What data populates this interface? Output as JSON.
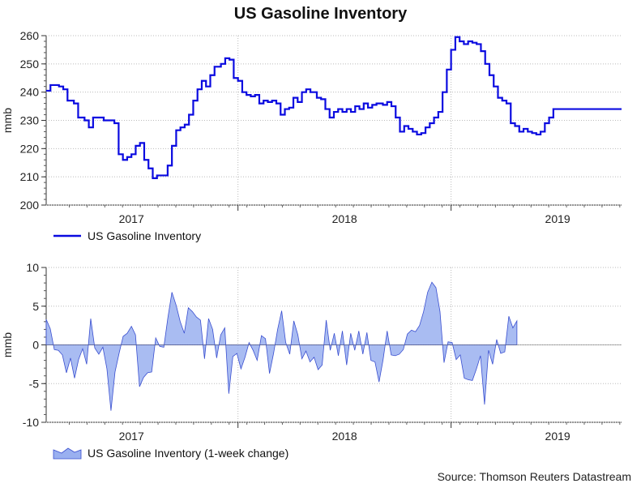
{
  "title": "US Gasoline Inventory",
  "source": "Source: Thomson Reuters Datastream",
  "colors": {
    "level_line": "#0a0ae0",
    "change_fill": "#9ab0f0",
    "change_line": "#3a4fd0",
    "grid": "#bbbbbb"
  },
  "chart_data": [
    {
      "type": "line",
      "title": "US Gasoline Inventory",
      "ylabel": "mmb",
      "ylim": [
        200,
        260
      ],
      "yticks": [
        200,
        210,
        220,
        230,
        240,
        250,
        260
      ],
      "x_range": [
        2016.6,
        2019.3
      ],
      "x_tick_labels": [
        {
          "label": "2017",
          "x": 2017.0
        },
        {
          "label": "2018",
          "x": 2018.0
        },
        {
          "label": "2019",
          "x": 2019.0
        }
      ],
      "legend": "US Gasoline Inventory",
      "legend_position": "bottom-left",
      "series": [
        {
          "name": "US Gasoline Inventory",
          "style": "step",
          "points": [
            [
              2016.6,
              240.5
            ],
            [
              2016.62,
              242.5
            ],
            [
              2016.66,
              242
            ],
            [
              2016.68,
              241
            ],
            [
              2016.7,
              237
            ],
            [
              2016.73,
              236
            ],
            [
              2016.75,
              231
            ],
            [
              2016.78,
              230
            ],
            [
              2016.8,
              227.5
            ],
            [
              2016.82,
              231
            ],
            [
              2016.87,
              230
            ],
            [
              2016.92,
              229
            ],
            [
              2016.94,
              218
            ],
            [
              2016.96,
              216
            ],
            [
              2016.98,
              217
            ],
            [
              2017.0,
              218
            ],
            [
              2017.02,
              221
            ],
            [
              2017.04,
              222
            ],
            [
              2017.06,
              216
            ],
            [
              2017.08,
              213
            ],
            [
              2017.1,
              209.5
            ],
            [
              2017.12,
              210.5
            ],
            [
              2017.17,
              214
            ],
            [
              2017.19,
              221
            ],
            [
              2017.21,
              226.5
            ],
            [
              2017.23,
              227.5
            ],
            [
              2017.25,
              228.5
            ],
            [
              2017.27,
              232
            ],
            [
              2017.29,
              237
            ],
            [
              2017.31,
              241
            ],
            [
              2017.33,
              244
            ],
            [
              2017.35,
              242
            ],
            [
              2017.37,
              246
            ],
            [
              2017.39,
              249
            ],
            [
              2017.42,
              250
            ],
            [
              2017.44,
              252
            ],
            [
              2017.46,
              251.5
            ],
            [
              2017.48,
              245
            ],
            [
              2017.5,
              244
            ],
            [
              2017.52,
              240
            ],
            [
              2017.54,
              239
            ],
            [
              2017.56,
              238.5
            ],
            [
              2017.58,
              239
            ],
            [
              2017.6,
              236
            ],
            [
              2017.62,
              237
            ],
            [
              2017.64,
              236.5
            ],
            [
              2017.66,
              237
            ],
            [
              2017.68,
              236
            ],
            [
              2017.7,
              232
            ],
            [
              2017.72,
              234
            ],
            [
              2017.74,
              234.5
            ],
            [
              2017.76,
              238
            ],
            [
              2017.78,
              236.5
            ],
            [
              2017.8,
              240
            ],
            [
              2017.82,
              241
            ],
            [
              2017.84,
              240
            ],
            [
              2017.87,
              238
            ],
            [
              2017.89,
              237.5
            ],
            [
              2017.91,
              234
            ],
            [
              2017.93,
              231
            ],
            [
              2017.95,
              233
            ],
            [
              2017.97,
              234
            ],
            [
              2017.99,
              233
            ],
            [
              2018.01,
              234
            ],
            [
              2018.03,
              233
            ],
            [
              2018.05,
              235
            ],
            [
              2018.07,
              234
            ],
            [
              2018.09,
              236
            ],
            [
              2018.11,
              234.5
            ],
            [
              2018.13,
              235.5
            ],
            [
              2018.15,
              236
            ],
            [
              2018.18,
              235.5
            ],
            [
              2018.2,
              236.5
            ],
            [
              2018.22,
              235
            ],
            [
              2018.24,
              231
            ],
            [
              2018.26,
              226
            ],
            [
              2018.28,
              228
            ],
            [
              2018.3,
              227
            ],
            [
              2018.32,
              226
            ],
            [
              2018.34,
              225
            ],
            [
              2018.36,
              225.5
            ],
            [
              2018.38,
              227.5
            ],
            [
              2018.4,
              229
            ],
            [
              2018.42,
              231
            ],
            [
              2018.44,
              233
            ],
            [
              2018.46,
              240
            ],
            [
              2018.48,
              248
            ],
            [
              2018.5,
              255
            ],
            [
              2018.52,
              259.5
            ],
            [
              2018.54,
              258
            ],
            [
              2018.56,
              257
            ],
            [
              2018.58,
              258
            ],
            [
              2018.6,
              257.5
            ],
            [
              2018.62,
              257
            ],
            [
              2018.64,
              254.5
            ],
            [
              2018.66,
              250
            ],
            [
              2018.68,
              246
            ],
            [
              2018.7,
              242
            ],
            [
              2018.72,
              238
            ],
            [
              2018.74,
              237
            ],
            [
              2018.76,
              236
            ],
            [
              2018.78,
              229
            ],
            [
              2018.8,
              228
            ],
            [
              2018.82,
              226
            ],
            [
              2018.84,
              227
            ],
            [
              2018.86,
              226
            ],
            [
              2018.88,
              225.5
            ],
            [
              2018.9,
              225
            ],
            [
              2018.92,
              226
            ],
            [
              2018.94,
              229
            ],
            [
              2018.96,
              231
            ],
            [
              2018.98,
              234
            ],
            [
              2019.0,
              234
            ]
          ]
        }
      ]
    },
    {
      "type": "area",
      "title": "US Gasoline Inventory (1-week change)",
      "ylabel": "mmb",
      "ylim": [
        -10,
        10
      ],
      "yticks": [
        -10,
        -5,
        0,
        5,
        10
      ],
      "x_range": [
        2016.6,
        2019.3
      ],
      "x_tick_labels": [
        {
          "label": "2017",
          "x": 2017.0
        },
        {
          "label": "2018",
          "x": 2018.0
        },
        {
          "label": "2019",
          "x": 2019.0
        }
      ],
      "legend": "US Gasoline Inventory (1-week change)",
      "legend_position": "bottom-left",
      "series": [
        {
          "name": "US Gasoline Inventory (1-week change)",
          "points": [
            [
              2016.6,
              3.3
            ],
            [
              2016.619,
              2.1
            ],
            [
              2016.638,
              -0.6
            ],
            [
              2016.657,
              -0.7
            ],
            [
              2016.676,
              -1.3
            ],
            [
              2016.695,
              -3.6
            ],
            [
              2016.714,
              -1.7
            ],
            [
              2016.733,
              -4.3
            ],
            [
              2016.752,
              -1.9
            ],
            [
              2016.771,
              -0.5
            ],
            [
              2016.79,
              -2.5
            ],
            [
              2016.809,
              3.4
            ],
            [
              2016.828,
              -0.4
            ],
            [
              2016.847,
              -1.2
            ],
            [
              2016.866,
              -0.3
            ],
            [
              2016.885,
              -3.1
            ],
            [
              2016.904,
              -8.5
            ],
            [
              2016.923,
              -3.5
            ],
            [
              2016.942,
              -1.1
            ],
            [
              2016.961,
              1.1
            ],
            [
              2016.98,
              1.5
            ],
            [
              2017.0,
              2.4
            ],
            [
              2017.019,
              1.3
            ],
            [
              2017.038,
              -5.4
            ],
            [
              2017.057,
              -4.2
            ],
            [
              2017.076,
              -3.6
            ],
            [
              2017.095,
              -3.5
            ],
            [
              2017.114,
              0.9
            ],
            [
              2017.133,
              -0.2
            ],
            [
              2017.152,
              -0.3
            ],
            [
              2017.171,
              3.5
            ],
            [
              2017.19,
              6.8
            ],
            [
              2017.21,
              5.1
            ],
            [
              2017.229,
              3.0
            ],
            [
              2017.248,
              1.5
            ],
            [
              2017.267,
              4.8
            ],
            [
              2017.286,
              4.3
            ],
            [
              2017.305,
              3.6
            ],
            [
              2017.324,
              3.2
            ],
            [
              2017.343,
              -1.8
            ],
            [
              2017.362,
              3.4
            ],
            [
              2017.381,
              2.0
            ],
            [
              2017.4,
              -1.7
            ],
            [
              2017.419,
              1.3
            ],
            [
              2017.438,
              2.2
            ],
            [
              2017.457,
              -6.3
            ],
            [
              2017.476,
              -1.5
            ],
            [
              2017.495,
              -1.1
            ],
            [
              2017.514,
              -3.1
            ],
            [
              2017.533,
              -1.6
            ],
            [
              2017.552,
              0.3
            ],
            [
              2017.571,
              -0.7
            ],
            [
              2017.59,
              -2.0
            ],
            [
              2017.61,
              1.2
            ],
            [
              2017.629,
              0.8
            ],
            [
              2017.648,
              -3.7
            ],
            [
              2017.667,
              -1.1
            ],
            [
              2017.686,
              2.0
            ],
            [
              2017.705,
              4.4
            ],
            [
              2017.724,
              0.3
            ],
            [
              2017.743,
              -1.2
            ],
            [
              2017.762,
              3.1
            ],
            [
              2017.781,
              1.3
            ],
            [
              2017.8,
              -1.8
            ],
            [
              2017.819,
              -0.8
            ],
            [
              2017.838,
              -2.2
            ],
            [
              2017.857,
              -1.6
            ],
            [
              2017.876,
              -3.2
            ],
            [
              2017.895,
              -2.6
            ],
            [
              2017.914,
              3.2
            ],
            [
              2017.933,
              -0.7
            ],
            [
              2017.952,
              1.5
            ],
            [
              2017.971,
              -1.4
            ],
            [
              2017.99,
              1.8
            ],
            [
              2018.01,
              -2.6
            ],
            [
              2018.029,
              1.5
            ],
            [
              2018.048,
              -0.7
            ],
            [
              2018.067,
              1.8
            ],
            [
              2018.086,
              -1.2
            ],
            [
              2018.105,
              1.6
            ],
            [
              2018.124,
              -2.0
            ],
            [
              2018.143,
              -2.2
            ],
            [
              2018.162,
              -4.8
            ],
            [
              2018.181,
              -1.9
            ],
            [
              2018.2,
              1.8
            ],
            [
              2018.219,
              -1.3
            ],
            [
              2018.238,
              -1.4
            ],
            [
              2018.257,
              -1.2
            ],
            [
              2018.276,
              -0.6
            ],
            [
              2018.295,
              1.4
            ],
            [
              2018.314,
              1.9
            ],
            [
              2018.333,
              1.7
            ],
            [
              2018.352,
              2.5
            ],
            [
              2018.371,
              4.3
            ],
            [
              2018.39,
              6.8
            ],
            [
              2018.41,
              8.1
            ],
            [
              2018.429,
              7.4
            ],
            [
              2018.448,
              4.3
            ],
            [
              2018.467,
              -2.3
            ],
            [
              2018.486,
              0.4
            ],
            [
              2018.505,
              0.3
            ],
            [
              2018.524,
              -1.9
            ],
            [
              2018.543,
              -1.3
            ],
            [
              2018.562,
              -4.3
            ],
            [
              2018.581,
              -4.5
            ],
            [
              2018.6,
              -4.6
            ],
            [
              2018.619,
              -3.1
            ],
            [
              2018.638,
              -1.4
            ],
            [
              2018.657,
              -7.7
            ],
            [
              2018.676,
              -0.7
            ],
            [
              2018.695,
              -2.5
            ],
            [
              2018.714,
              0.7
            ],
            [
              2018.733,
              -1.1
            ],
            [
              2018.752,
              -0.9
            ],
            [
              2018.771,
              3.7
            ],
            [
              2018.79,
              2.2
            ],
            [
              2018.809,
              3.1
            ]
          ]
        }
      ]
    }
  ]
}
